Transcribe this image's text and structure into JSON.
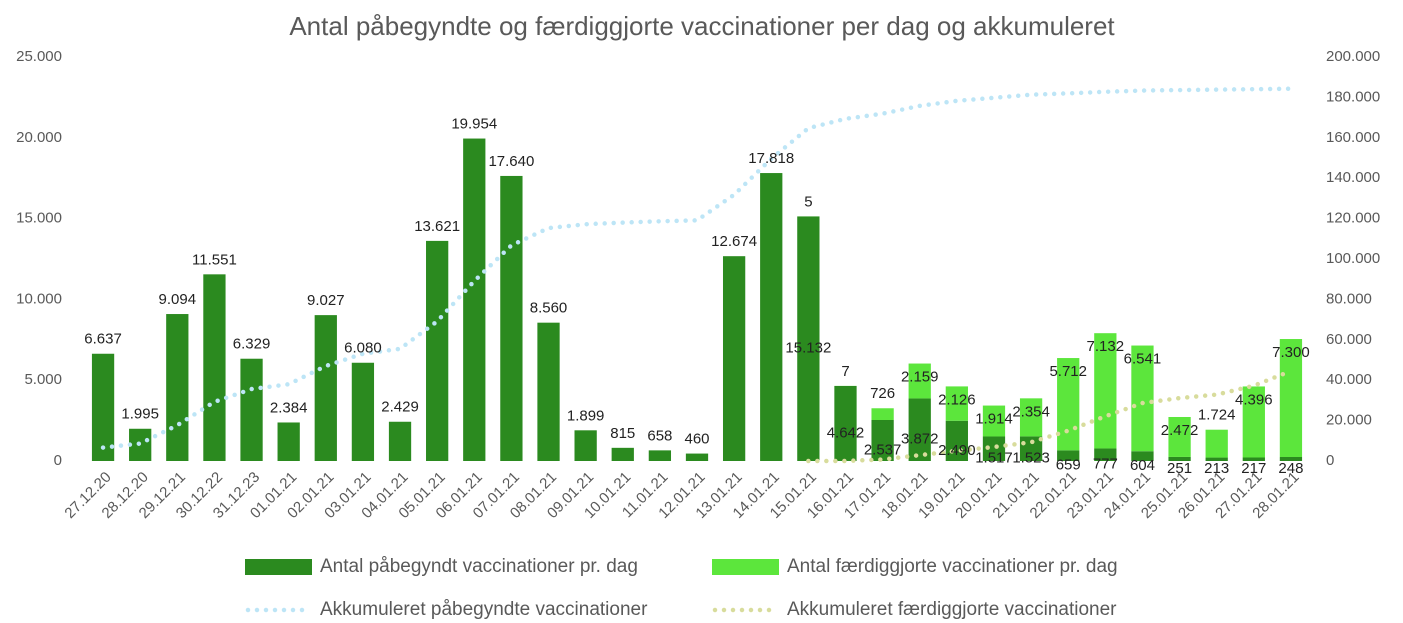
{
  "chart_data": {
    "type": "bar",
    "stacked": true,
    "title": "Antal påbegyndte og færdiggjorte vaccinationer per dag og akkumuleret",
    "categories": [
      "27.12.20",
      "28.12.20",
      "29.12.21",
      "30.12.22",
      "31.12.23",
      "01.01.21",
      "02.01.21",
      "03.01.21",
      "04.01.21",
      "05.01.21",
      "06.01.21",
      "07.01.21",
      "08.01.21",
      "09.01.21",
      "10.01.21",
      "11.01.21",
      "12.01.21",
      "13.01.21",
      "14.01.21",
      "15.01.21",
      "16.01.21",
      "17.01.21",
      "18.01.21",
      "19.01.21",
      "20.01.21",
      "21.01.21",
      "22.01.21",
      "23.01.21",
      "24.01.21",
      "25.01.21",
      "26.01.21",
      "27.01.21",
      "28.01.21"
    ],
    "series": [
      {
        "name": "Antal påbegyndt vaccinationer pr. dag",
        "type": "bar",
        "color": "#2b8a1f",
        "values": [
          6637,
          1995,
          9094,
          11551,
          6329,
          2384,
          9027,
          6080,
          2429,
          13621,
          19954,
          17640,
          8560,
          1899,
          815,
          658,
          460,
          12674,
          17818,
          15132,
          4642,
          2537,
          3872,
          2490,
          1517,
          1523,
          659,
          777,
          604,
          251,
          213,
          217,
          248
        ],
        "value_labels": [
          "6.637",
          "1.995",
          "9.094",
          "11.551",
          "6.329",
          "2.384",
          "9.027",
          "6.080",
          "2.429",
          "13.621",
          "19.954",
          "17.640",
          "8.560",
          "1.899",
          "815",
          "658",
          "460",
          "12.674",
          "17.818",
          "15.132",
          "4.642",
          "2.537",
          "3.872",
          "2.490",
          "1.517",
          "1.523",
          "659",
          "777",
          "604",
          "251",
          "213",
          "217",
          "248"
        ]
      },
      {
        "name": "Antal færdiggjorte vaccinationer pr. dag",
        "type": "bar",
        "color": "#5ce63c",
        "values": [
          null,
          null,
          null,
          null,
          null,
          null,
          null,
          null,
          null,
          null,
          null,
          null,
          null,
          null,
          null,
          null,
          null,
          null,
          null,
          5,
          7,
          726,
          2159,
          2126,
          1914,
          2354,
          5712,
          7132,
          6541,
          2472,
          1724,
          4396,
          7300
        ],
        "value_labels": [
          null,
          null,
          null,
          null,
          null,
          null,
          null,
          null,
          null,
          null,
          null,
          null,
          null,
          null,
          null,
          null,
          null,
          null,
          null,
          "5",
          "7",
          "726",
          "2.159",
          "2.126",
          "1.914",
          "2.354",
          "5.712",
          "7.132",
          "6.541",
          "2.472",
          "1.724",
          "4.396",
          "7.300"
        ]
      },
      {
        "name": "Akkumuleret påbegyndte vaccinationer",
        "type": "line",
        "axis": "y2",
        "color": "#bde5f6",
        "values": [
          6637,
          8632,
          17726,
          29277,
          35606,
          37990,
          47017,
          53097,
          55526,
          69147,
          89101,
          106741,
          115301,
          117200,
          118015,
          118673,
          119133,
          131807,
          149625,
          164757,
          169399,
          171936,
          175808,
          178298,
          179815,
          181338,
          181997,
          182774,
          183378,
          183629,
          183842,
          184059,
          184307
        ]
      },
      {
        "name": "Akkumuleret færdiggjorte vaccinationer",
        "type": "line",
        "axis": "y2",
        "color": "#d8dc9c",
        "values": [
          null,
          null,
          null,
          null,
          null,
          null,
          null,
          null,
          null,
          null,
          null,
          null,
          null,
          null,
          null,
          null,
          null,
          null,
          null,
          5,
          12,
          738,
          2897,
          5023,
          6937,
          9291,
          15003,
          22135,
          28676,
          31148,
          32872,
          37268,
          44568
        ]
      }
    ],
    "ylim": [
      0,
      25000
    ],
    "yticks": [
      0,
      {
        "value": 5000,
        "label": "5.000"
      },
      {
        "value": 10000,
        "label": "10.000"
      },
      {
        "value": 15000,
        "label": "15.000"
      },
      {
        "value": 20000,
        "label": "20.000"
      },
      {
        "value": 25000,
        "label": "25.000"
      }
    ],
    "y2lim": [
      0,
      200000
    ],
    "y2ticks": [
      0,
      {
        "value": 20000,
        "label": "20.000"
      },
      {
        "value": 40000,
        "label": "40.000"
      },
      {
        "value": 60000,
        "label": "60.000"
      },
      {
        "value": 80000,
        "label": "80.000"
      },
      {
        "value": 100000,
        "label": "100.000"
      },
      {
        "value": 120000,
        "label": "120.000"
      },
      {
        "value": 140000,
        "label": "140.000"
      },
      {
        "value": 160000,
        "label": "160.000"
      },
      {
        "value": 180000,
        "label": "180.000"
      },
      {
        "value": 200000,
        "label": "200.000"
      }
    ],
    "grid": false,
    "legend": "bottom"
  }
}
